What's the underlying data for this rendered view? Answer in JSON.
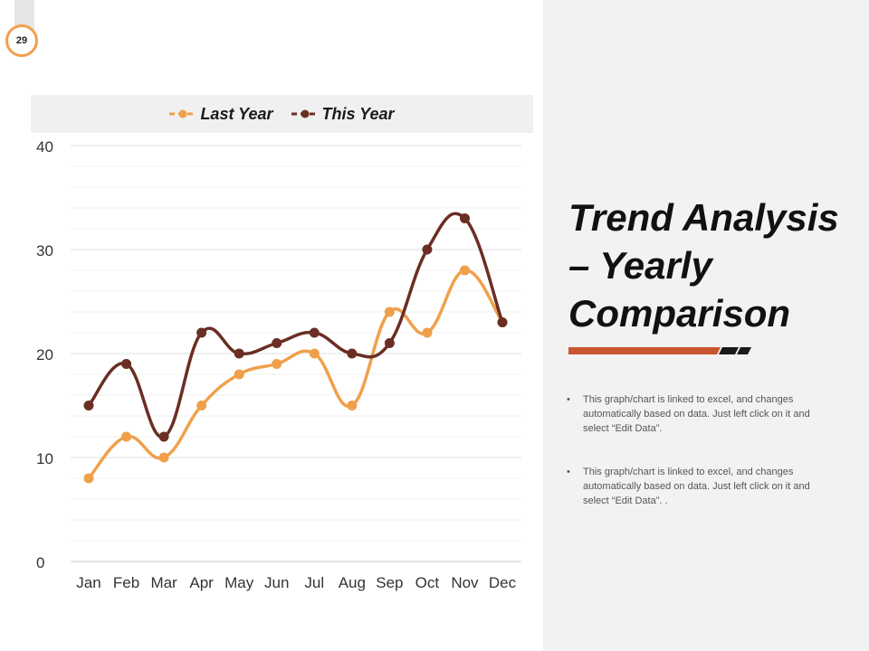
{
  "slide": {
    "page_number": "29",
    "title_lines": [
      "Trend Analysis",
      "– Yearly",
      "Comparison"
    ],
    "bullets": [
      "This graph/chart is linked to excel, and changes automatically based on data. Just left click on it and select “Edit Data”.",
      "This graph/chart is linked to excel, and changes automatically based on data. Just left click on it and select “Edit Data”. ."
    ],
    "bullet_marker": "•"
  },
  "colors": {
    "last_year": "#f0a04b",
    "this_year": "#6b2e24",
    "accent_bar": "#c8552f",
    "accent_dark": "#1a1a1a"
  },
  "chart_data": {
    "type": "line",
    "smoothed": true,
    "categories": [
      "Jan",
      "Feb",
      "Mar",
      "Apr",
      "May",
      "Jun",
      "Jul",
      "Aug",
      "Sep",
      "Oct",
      "Nov",
      "Dec"
    ],
    "series": [
      {
        "name": "Last Year",
        "values": [
          8,
          12,
          10,
          15,
          18,
          19,
          20,
          15,
          24,
          22,
          28,
          23
        ]
      },
      {
        "name": "This Year",
        "values": [
          15,
          19,
          12,
          22,
          20,
          21,
          22,
          20,
          21,
          30,
          33,
          23
        ]
      }
    ],
    "ylim": [
      0,
      40
    ],
    "yticks": [
      "0",
      "10",
      "20",
      "30",
      "40"
    ],
    "grid": true,
    "legend_position": "top"
  }
}
